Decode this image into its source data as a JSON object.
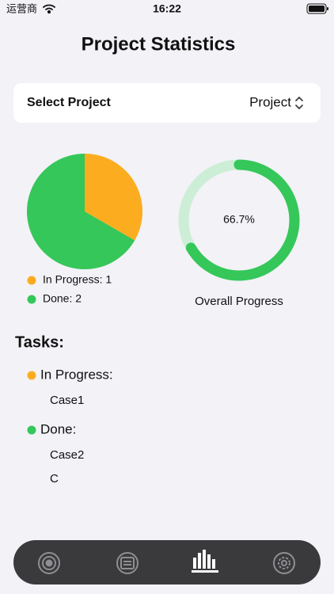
{
  "status_bar": {
    "carrier": "运营商",
    "time": "16:22"
  },
  "header": {
    "title": "Project Statistics"
  },
  "selector": {
    "label": "Select Project",
    "value": "Project"
  },
  "chart_data": [
    {
      "type": "pie",
      "categories": [
        "In Progress: 1",
        "Done: 2"
      ],
      "values": [
        1,
        2
      ],
      "colors": [
        "#fbad1f",
        "#35c759"
      ]
    },
    {
      "type": "gauge",
      "title": "Overall Progress",
      "values": [
        66.7
      ],
      "value_labels": [
        "66.7%"
      ],
      "ylim": [
        0,
        100
      ],
      "color": "#35c759",
      "track_color": "#cdeed6"
    }
  ],
  "tasks": {
    "title": "Tasks:",
    "groups": [
      {
        "name": "In Progress:",
        "color": "#fbad1f",
        "items": [
          "Case1"
        ]
      },
      {
        "name": "Done:",
        "color": "#35c759",
        "items": [
          "Case2",
          "C"
        ]
      }
    ]
  }
}
